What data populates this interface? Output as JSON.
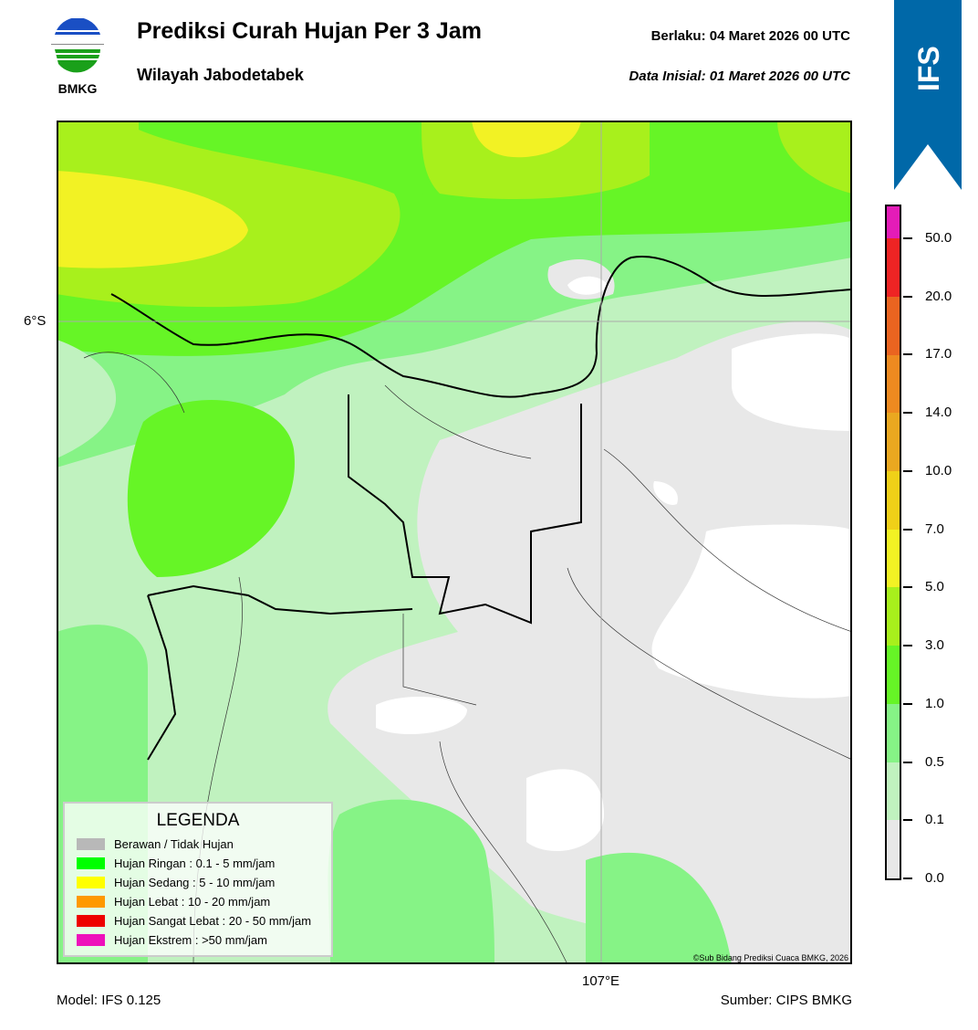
{
  "header": {
    "logo_text": "BMKG",
    "title": "Prediksi Curah Hujan Per 3 Jam",
    "subtitle": "Wilayah Jabodetabek",
    "valid_label": "Berlaku:  04 Maret 2026 00 UTC",
    "initial_label": "Data Inisial:  01 Maret 2026 00 UTC"
  },
  "model_badge": "IFS",
  "map": {
    "lat_label": "6°S",
    "lon_label": "107°E",
    "copyright": "©Sub Bidang Prediksi Cuaca BMKG, 2026"
  },
  "legend": {
    "title": "LEGENDA",
    "items": [
      {
        "label": "Berawan / Tidak Hujan",
        "color": "#b8b8b8"
      },
      {
        "label": "Hujan Ringan : 0.1 - 5 mm/jam",
        "color": "#00ff00"
      },
      {
        "label": "Hujan Sedang : 5 - 10 mm/jam",
        "color": "#ffff00"
      },
      {
        "label": "Hujan Lebat : 10 - 20 mm/jam",
        "color": "#ff9900"
      },
      {
        "label": "Hujan Sangat Lebat : 20 - 50 mm/jam",
        "color": "#ee0000"
      },
      {
        "label": "Hujan Ekstrem : >50 mm/jam",
        "color": "#ee11bb"
      }
    ]
  },
  "colorbar": {
    "ticks": [
      "0.0",
      "0.1",
      "0.5",
      "1.0",
      "3.0",
      "5.0",
      "7.0",
      "10.0",
      "14.0",
      "17.0",
      "20.0",
      "50.0"
    ],
    "colors": [
      "#e8e8e8",
      "#c0f2bf",
      "#86f386",
      "#66f526",
      "#a8f01c",
      "#f2f224",
      "#f0d018",
      "#eaa820",
      "#ee8a20",
      "#ea6420",
      "#ee2424",
      "#e41cb8"
    ]
  },
  "footer": {
    "model": "Model: IFS 0.125",
    "source": "Sumber: CIPS BMKG"
  }
}
